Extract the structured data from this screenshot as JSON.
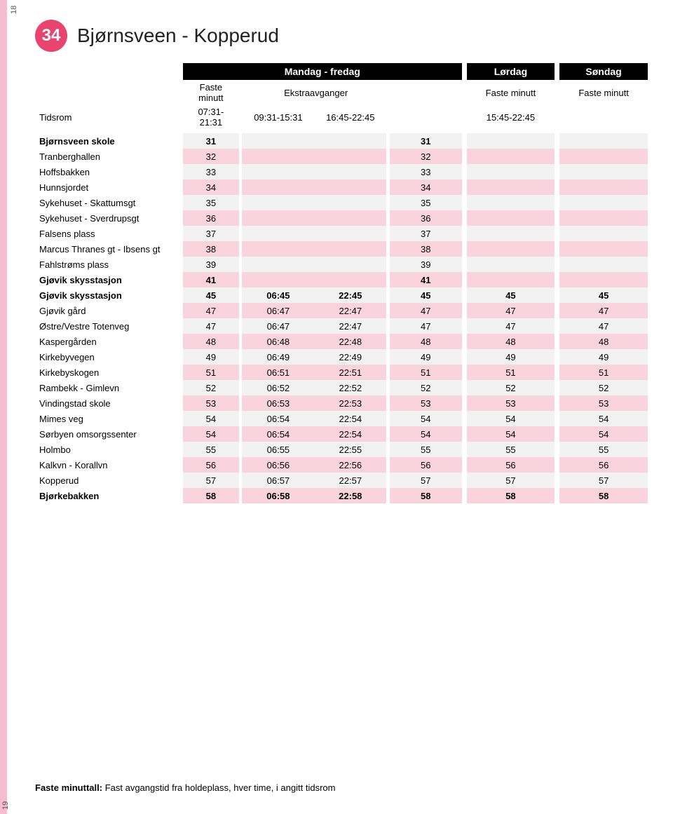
{
  "page_number_top": "18",
  "page_number_bottom": "19",
  "route": {
    "number": "34",
    "title": "Bjørnsveen - Kopperud",
    "badge_bg": "#e7446f",
    "badge_fg": "#ffffff"
  },
  "day_headers": {
    "weekday": "Mandag - fredag",
    "saturday": "Lørdag",
    "sunday": "Søndag"
  },
  "sub_headers": {
    "fixed": "Faste minutt",
    "extra": "Ekstraavganger"
  },
  "period_row": {
    "label": "Tidsrom",
    "weekday_fixed": "07:31-21:31",
    "weekday_extra1": "09:31-15:31",
    "weekday_extra2": "16:45-22:45",
    "saturday": "15:45-22:45",
    "sunday": ""
  },
  "colors": {
    "row_grey": "#f2f2f2",
    "row_pink": "#f9d3de",
    "stripe": "#f7bccf",
    "header_black": "#000000"
  },
  "columns": [
    "stop",
    "c1",
    "c2",
    "c3",
    "c4",
    "c5",
    "c6"
  ],
  "rows": [
    {
      "bold": true,
      "pink": false,
      "stop": "Bjørnsveen skole",
      "c1": "31",
      "c2": "",
      "c3": "",
      "c4": "31",
      "c5": "",
      "c6": ""
    },
    {
      "bold": false,
      "pink": true,
      "stop": "Tranberghallen",
      "c1": "32",
      "c2": "",
      "c3": "",
      "c4": "32",
      "c5": "",
      "c6": ""
    },
    {
      "bold": false,
      "pink": false,
      "stop": "Hoffsbakken",
      "c1": "33",
      "c2": "",
      "c3": "",
      "c4": "33",
      "c5": "",
      "c6": ""
    },
    {
      "bold": false,
      "pink": true,
      "stop": "Hunnsjordet",
      "c1": "34",
      "c2": "",
      "c3": "",
      "c4": "34",
      "c5": "",
      "c6": ""
    },
    {
      "bold": false,
      "pink": false,
      "stop": "Sykehuset - Skattumsgt",
      "c1": "35",
      "c2": "",
      "c3": "",
      "c4": "35",
      "c5": "",
      "c6": ""
    },
    {
      "bold": false,
      "pink": true,
      "stop": "Sykehuset - Sverdrupsgt",
      "c1": "36",
      "c2": "",
      "c3": "",
      "c4": "36",
      "c5": "",
      "c6": ""
    },
    {
      "bold": false,
      "pink": false,
      "stop": "Falsens plass",
      "c1": "37",
      "c2": "",
      "c3": "",
      "c4": "37",
      "c5": "",
      "c6": ""
    },
    {
      "bold": false,
      "pink": true,
      "stop": "Marcus Thranes gt - Ibsens gt",
      "c1": "38",
      "c2": "",
      "c3": "",
      "c4": "38",
      "c5": "",
      "c6": ""
    },
    {
      "bold": false,
      "pink": false,
      "stop": "Fahlstrøms plass",
      "c1": "39",
      "c2": "",
      "c3": "",
      "c4": "39",
      "c5": "",
      "c6": ""
    },
    {
      "bold": true,
      "pink": true,
      "stop": "Gjøvik skysstasjon",
      "c1": "41",
      "c2": "",
      "c3": "",
      "c4": "41",
      "c5": "",
      "c6": ""
    },
    {
      "bold": true,
      "pink": false,
      "stop": "Gjøvik skysstasjon",
      "c1": "45",
      "c2": "06:45",
      "c3": "22:45",
      "c4": "45",
      "c5": "45",
      "c6": "45"
    },
    {
      "bold": false,
      "pink": true,
      "stop": "Gjøvik gård",
      "c1": "47",
      "c2": "06:47",
      "c3": "22:47",
      "c4": "47",
      "c5": "47",
      "c6": "47"
    },
    {
      "bold": false,
      "pink": false,
      "stop": "Østre/Vestre Totenveg",
      "c1": "47",
      "c2": "06:47",
      "c3": "22:47",
      "c4": "47",
      "c5": "47",
      "c6": "47"
    },
    {
      "bold": false,
      "pink": true,
      "stop": "Kaspergården",
      "c1": "48",
      "c2": "06:48",
      "c3": "22:48",
      "c4": "48",
      "c5": "48",
      "c6": "48"
    },
    {
      "bold": false,
      "pink": false,
      "stop": "Kirkebyvegen",
      "c1": "49",
      "c2": "06:49",
      "c3": "22:49",
      "c4": "49",
      "c5": "49",
      "c6": "49"
    },
    {
      "bold": false,
      "pink": true,
      "stop": "Kirkebyskogen",
      "c1": "51",
      "c2": "06:51",
      "c3": "22:51",
      "c4": "51",
      "c5": "51",
      "c6": "51"
    },
    {
      "bold": false,
      "pink": false,
      "stop": "Rambekk - Gimlevn",
      "c1": "52",
      "c2": "06:52",
      "c3": "22:52",
      "c4": "52",
      "c5": "52",
      "c6": "52"
    },
    {
      "bold": false,
      "pink": true,
      "stop": "Vindingstad skole",
      "c1": "53",
      "c2": "06:53",
      "c3": "22:53",
      "c4": "53",
      "c5": "53",
      "c6": "53"
    },
    {
      "bold": false,
      "pink": false,
      "stop": "Mimes veg",
      "c1": "54",
      "c2": "06:54",
      "c3": "22:54",
      "c4": "54",
      "c5": "54",
      "c6": "54"
    },
    {
      "bold": false,
      "pink": true,
      "stop": "Sørbyen omsorgssenter",
      "c1": "54",
      "c2": "06:54",
      "c3": "22:54",
      "c4": "54",
      "c5": "54",
      "c6": "54"
    },
    {
      "bold": false,
      "pink": false,
      "stop": "Holmbo",
      "c1": "55",
      "c2": "06:55",
      "c3": "22:55",
      "c4": "55",
      "c5": "55",
      "c6": "55"
    },
    {
      "bold": false,
      "pink": true,
      "stop": "Kalkvn - Korallvn",
      "c1": "56",
      "c2": "06:56",
      "c3": "22:56",
      "c4": "56",
      "c5": "56",
      "c6": "56"
    },
    {
      "bold": false,
      "pink": false,
      "stop": "Kopperud",
      "c1": "57",
      "c2": "06:57",
      "c3": "22:57",
      "c4": "57",
      "c5": "57",
      "c6": "57"
    },
    {
      "bold": true,
      "pink": true,
      "stop": "Bjørkebakken",
      "c1": "58",
      "c2": "06:58",
      "c3": "22:58",
      "c4": "58",
      "c5": "58",
      "c6": "58"
    }
  ],
  "footer": {
    "label": "Faste minuttall:",
    "text": " Fast avgangstid fra holdeplass, hver time, i angitt tidsrom"
  }
}
